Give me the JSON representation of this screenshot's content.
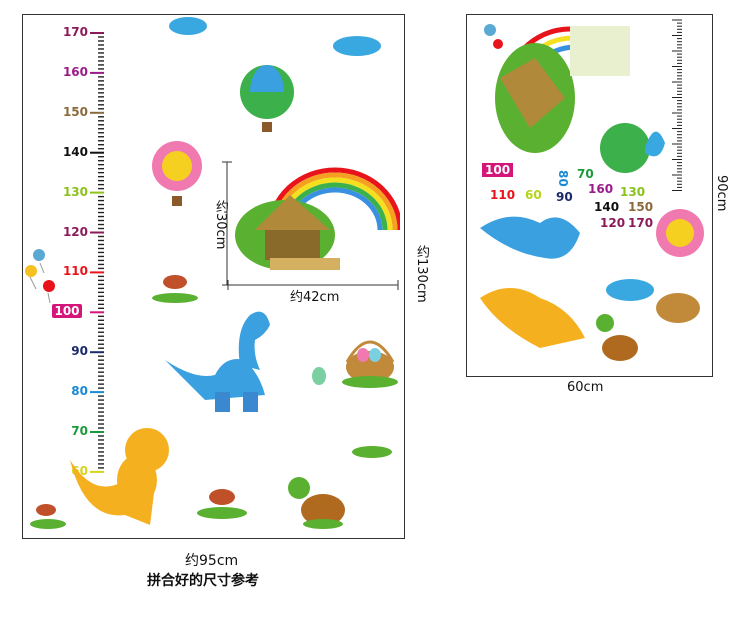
{
  "left_chart": {
    "ruler_labels": [
      {
        "value": "170",
        "color": "#8b1a5a"
      },
      {
        "value": "160",
        "color": "#9b1a8a"
      },
      {
        "value": "150",
        "color": "#8a6a3a"
      },
      {
        "value": "140",
        "color": "#111111"
      },
      {
        "value": "130",
        "color": "#8bc21a"
      },
      {
        "value": "120",
        "color": "#8b1a5a"
      },
      {
        "value": "110",
        "color": "#e8131b"
      },
      {
        "value": "100",
        "color": "#d4157a"
      },
      {
        "value": "90",
        "color": "#1a2a6a"
      },
      {
        "value": "80",
        "color": "#1a8ad4"
      },
      {
        "value": "70",
        "color": "#1a9a3a"
      },
      {
        "value": "60",
        "color": "#d4d41a"
      }
    ],
    "house_height": "约30cm",
    "house_width": "约42cm",
    "total_height": "约130cm",
    "total_width": "约95cm",
    "caption": "拼合好的尺寸参考"
  },
  "right_sheet": {
    "width": "60cm",
    "height": "90cm",
    "numbers": [
      {
        "value": "100",
        "color": "#d4157a"
      },
      {
        "value": "110",
        "color": "#e8131b"
      },
      {
        "value": "60",
        "color": "#b4d41a"
      },
      {
        "value": "80",
        "color": "#1a8ad4"
      },
      {
        "value": "90",
        "color": "#1a2a6a"
      },
      {
        "value": "70",
        "color": "#1a9a3a"
      },
      {
        "value": "160",
        "color": "#9b1a8a"
      },
      {
        "value": "130",
        "color": "#8bc21a"
      },
      {
        "value": "140",
        "color": "#111111"
      },
      {
        "value": "150",
        "color": "#8a6a3a"
      },
      {
        "value": "120",
        "color": "#8b1a5a"
      },
      {
        "value": "170",
        "color": "#8b1a5a"
      }
    ]
  }
}
